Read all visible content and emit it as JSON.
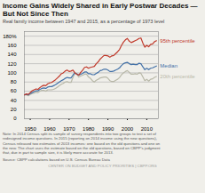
{
  "chart_data": {
    "type": "line",
    "title": "Income Gains Widely Shared in Early Postwar Decades — But Not Since Then",
    "subtitle": "Real family income between 1947 and 2015, as a percentage of 1973 level",
    "x": [
      1947,
      1948,
      1949,
      1950,
      1951,
      1952,
      1953,
      1954,
      1955,
      1956,
      1957,
      1958,
      1959,
      1960,
      1961,
      1962,
      1963,
      1964,
      1965,
      1966,
      1967,
      1968,
      1969,
      1970,
      1971,
      1972,
      1973,
      1974,
      1975,
      1976,
      1977,
      1978,
      1979,
      1980,
      1981,
      1982,
      1983,
      1984,
      1985,
      1986,
      1987,
      1988,
      1989,
      1990,
      1991,
      1992,
      1993,
      1994,
      1995,
      1996,
      1997,
      1998,
      1999,
      2000,
      2001,
      2002,
      2003,
      2004,
      2005,
      2006,
      2007,
      2008,
      2009,
      2010,
      2011,
      2012,
      2013,
      2014,
      2015
    ],
    "series": [
      {
        "name": "20th percentile",
        "color": "#b8b8a8",
        "values": [
          52,
          52,
          50,
          53,
          55,
          56,
          58,
          57,
          60,
          62,
          62,
          60,
          63,
          63,
          63,
          64,
          66,
          69,
          72,
          75,
          77,
          80,
          81,
          79,
          79,
          90,
          100,
          97,
          91,
          93,
          95,
          97,
          97,
          91,
          88,
          83,
          80,
          84,
          86,
          89,
          90,
          91,
          91,
          88,
          83,
          81,
          81,
          84,
          86,
          90,
          96,
          100,
          103,
          105,
          101,
          97,
          97,
          98,
          97,
          100,
          99,
          91,
          83,
          86,
          82,
          86,
          87,
          90,
          92
        ]
      },
      {
        "name": "Median",
        "color": "#4472a8",
        "values": [
          52,
          53,
          52,
          55,
          57,
          59,
          61,
          61,
          64,
          66,
          67,
          66,
          69,
          70,
          70,
          72,
          74,
          77,
          80,
          83,
          85,
          88,
          90,
          89,
          89,
          95,
          100,
          98,
          95,
          97,
          99,
          102,
          102,
          98,
          98,
          96,
          96,
          99,
          101,
          105,
          106,
          108,
          108,
          106,
          103,
          103,
          104,
          106,
          108,
          111,
          116,
          120,
          122,
          123,
          120,
          118,
          119,
          118,
          118,
          121,
          120,
          113,
          107,
          110,
          107,
          110,
          111,
          113,
          115
        ]
      },
      {
        "name": "95th percentile",
        "color": "#c0392b",
        "values": [
          52,
          54,
          53,
          57,
          61,
          63,
          65,
          64,
          68,
          71,
          73,
          72,
          76,
          78,
          79,
          82,
          85,
          89,
          93,
          98,
          100,
          104,
          106,
          103,
          104,
          106,
          100,
          97,
          95,
          101,
          106,
          112,
          113,
          110,
          112,
          113,
          114,
          120,
          124,
          130,
          134,
          138,
          138,
          137,
          134,
          137,
          138,
          142,
          146,
          151,
          160,
          167,
          172,
          175,
          169,
          166,
          168,
          170,
          172,
          175,
          176,
          165,
          156,
          160,
          157,
          162,
          163,
          168,
          170
        ]
      }
    ],
    "xlim": [
      1947,
      2016
    ],
    "xticks": [
      1950,
      1960,
      1970,
      1980,
      1990,
      2000,
      2010
    ],
    "ylim": [
      0,
      190
    ],
    "yticks": [
      0,
      20,
      40,
      60,
      80,
      100,
      120,
      140,
      160,
      {
        "value": 180,
        "label": "180%"
      }
    ],
    "grid": true,
    "annotations": [
      "Note: In 2014 Census split its sample of survey respondents into two groups to test a set of\nredesigned income questions.  In 2015 (reporting on 2014 income using the new questions),\nCensus released two estimates of 2013 incomes: one based on the old questions and one on\nthe new.  The chart uses the estimate based on the old questions, based on CBPP's judgment\nthat, due in part to sample size, it is likely more accurate for 2013.",
      "Source: CBPP calculations based on U.S. Census Bureau Data",
      "CENTER ON BUDGET AND POLICY PRIORITIES | CBPP.ORG"
    ]
  }
}
